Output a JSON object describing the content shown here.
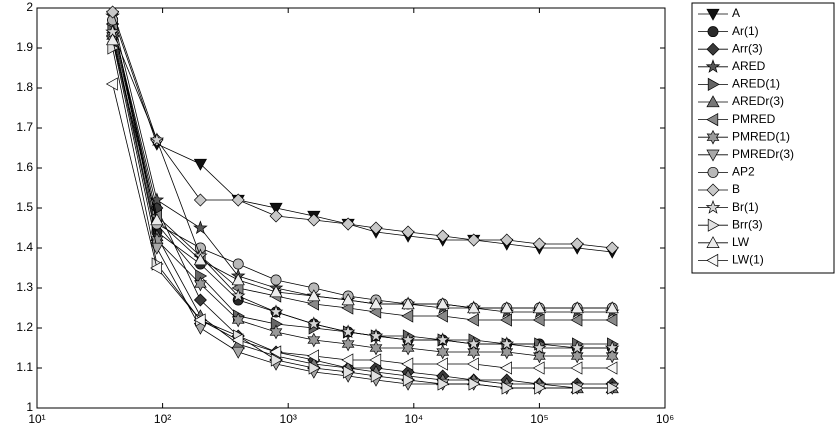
{
  "chart_data": {
    "type": "line",
    "xscale": "log",
    "x": [
      40,
      90,
      200,
      400,
      800,
      1600,
      3000,
      5000,
      9000,
      17000,
      30000,
      55000,
      100000,
      200000,
      380000
    ],
    "xlim": [
      10,
      1000000
    ],
    "xticks": [
      {
        "value": 10,
        "label": "10¹"
      },
      {
        "value": 100,
        "label": "10²"
      },
      {
        "value": 1000,
        "label": "10³"
      },
      {
        "value": 10000,
        "label": "10⁴"
      },
      {
        "value": 100000,
        "label": "10⁵"
      },
      {
        "value": 1000000,
        "label": "10⁶"
      }
    ],
    "ylim": [
      1,
      2
    ],
    "yticks": [
      1,
      1.1,
      1.2,
      1.3,
      1.4,
      1.5,
      1.6,
      1.7,
      1.8,
      1.9,
      2
    ],
    "legend": "outside-right",
    "series": [
      {
        "name": "A",
        "marker": "triangle-down",
        "color": "#111111",
        "values": [
          1.98,
          1.66,
          1.61,
          1.52,
          1.5,
          1.48,
          1.46,
          1.44,
          1.43,
          1.42,
          1.42,
          1.41,
          1.4,
          1.4,
          1.39
        ]
      },
      {
        "name": "Ar(1)",
        "marker": "circle",
        "color": "#2a2a2a",
        "values": [
          1.97,
          1.44,
          1.36,
          1.27,
          1.24,
          1.21,
          1.19,
          1.18,
          1.17,
          1.17,
          1.16,
          1.16,
          1.16,
          1.15,
          1.15
        ]
      },
      {
        "name": "Arr(3)",
        "marker": "diamond",
        "color": "#3a3a3a",
        "values": [
          1.96,
          1.5,
          1.27,
          1.18,
          1.14,
          1.12,
          1.1,
          1.1,
          1.09,
          1.08,
          1.07,
          1.07,
          1.06,
          1.06,
          1.06
        ]
      },
      {
        "name": "ARED",
        "marker": "star",
        "color": "#555555",
        "values": [
          1.98,
          1.52,
          1.45,
          1.33,
          1.3,
          1.28,
          1.27,
          1.26,
          1.26,
          1.25,
          1.25,
          1.24,
          1.24,
          1.24,
          1.24
        ]
      },
      {
        "name": "ARED(1)",
        "marker": "triangle-right",
        "color": "#666666",
        "values": [
          1.95,
          1.46,
          1.33,
          1.23,
          1.21,
          1.2,
          1.19,
          1.18,
          1.18,
          1.17,
          1.17,
          1.16,
          1.16,
          1.16,
          1.16
        ]
      },
      {
        "name": "AREDr(3)",
        "marker": "triangle-up",
        "color": "#777777",
        "values": [
          1.94,
          1.43,
          1.23,
          1.16,
          1.13,
          1.11,
          1.1,
          1.09,
          1.08,
          1.07,
          1.07,
          1.06,
          1.06,
          1.05,
          1.05
        ]
      },
      {
        "name": "PMRED",
        "marker": "triangle-left",
        "color": "#888888",
        "values": [
          1.96,
          1.48,
          1.38,
          1.3,
          1.28,
          1.26,
          1.25,
          1.24,
          1.23,
          1.23,
          1.22,
          1.22,
          1.22,
          1.22,
          1.22
        ]
      },
      {
        "name": "PMRED(1)",
        "marker": "hexagram",
        "color": "#999999",
        "values": [
          1.93,
          1.42,
          1.31,
          1.22,
          1.19,
          1.17,
          1.16,
          1.15,
          1.15,
          1.14,
          1.14,
          1.14,
          1.13,
          1.13,
          1.13
        ]
      },
      {
        "name": "PMREDr(3)",
        "marker": "triangle-down",
        "color": "#a8a8a8",
        "values": [
          1.92,
          1.4,
          1.2,
          1.14,
          1.11,
          1.09,
          1.08,
          1.07,
          1.06,
          1.06,
          1.06,
          1.05,
          1.05,
          1.05,
          1.05
        ]
      },
      {
        "name": "AP2",
        "marker": "circle",
        "color": "#b8b8b8",
        "values": [
          1.97,
          1.46,
          1.4,
          1.36,
          1.32,
          1.3,
          1.28,
          1.27,
          1.26,
          1.26,
          1.25,
          1.25,
          1.25,
          1.25,
          1.25
        ]
      },
      {
        "name": "B",
        "marker": "diamond",
        "color": "#c8c8c8",
        "values": [
          1.99,
          1.67,
          1.52,
          1.52,
          1.48,
          1.47,
          1.46,
          1.45,
          1.44,
          1.43,
          1.42,
          1.42,
          1.41,
          1.41,
          1.4
        ]
      },
      {
        "name": "Br(1)",
        "marker": "star",
        "color": "#d6d6d6",
        "values": [
          1.94,
          1.67,
          1.38,
          1.28,
          1.24,
          1.21,
          1.19,
          1.18,
          1.17,
          1.17,
          1.16,
          1.16,
          1.15,
          1.15,
          1.15
        ]
      },
      {
        "name": "Brr(3)",
        "marker": "triangle-right",
        "color": "#e2e2e2",
        "values": [
          1.9,
          1.36,
          1.22,
          1.18,
          1.12,
          1.1,
          1.09,
          1.08,
          1.07,
          1.06,
          1.06,
          1.05,
          1.05,
          1.05,
          1.05
        ]
      },
      {
        "name": "LW",
        "marker": "triangle-up",
        "color": "#ececec",
        "values": [
          1.92,
          1.47,
          1.37,
          1.32,
          1.29,
          1.28,
          1.27,
          1.26,
          1.26,
          1.26,
          1.25,
          1.25,
          1.25,
          1.25,
          1.25
        ]
      },
      {
        "name": "LW(1)",
        "marker": "triangle-left",
        "color": "#f8f8f8",
        "values": [
          1.81,
          1.35,
          1.22,
          1.17,
          1.14,
          1.13,
          1.12,
          1.12,
          1.11,
          1.11,
          1.11,
          1.1,
          1.1,
          1.1,
          1.1
        ]
      }
    ]
  }
}
